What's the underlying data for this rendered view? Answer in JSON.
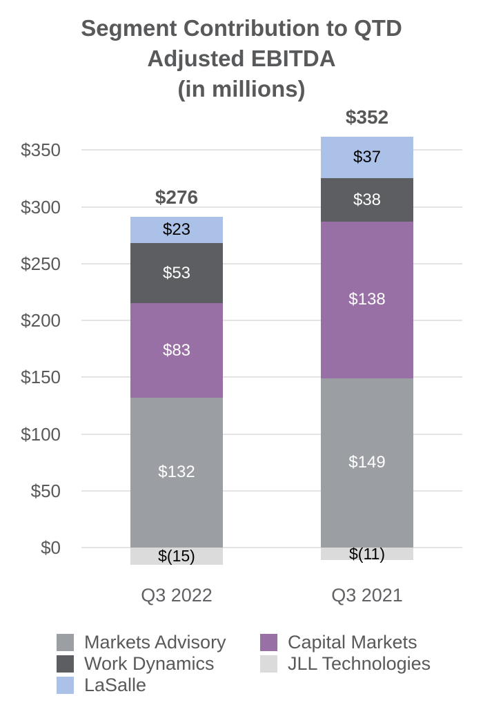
{
  "title": {
    "lines": [
      "Segment Contribution to QTD",
      "Adjusted EBITDA",
      "(in millions)"
    ]
  },
  "colors": {
    "background": "#FFFFFF",
    "grid": "#E4E4E4",
    "axis_text": "#595959",
    "title_text": "#58595B"
  },
  "chart_data": {
    "type": "bar",
    "stacked": true,
    "title": "Segment Contribution to QTD Adjusted EBITDA (in millions)",
    "categories": [
      "Q3 2022",
      "Q3 2021"
    ],
    "series": [
      {
        "name": "Markets Advisory",
        "color": "#9B9EA3",
        "label_color": "#FFFFFF",
        "values": [
          132,
          149
        ],
        "labels": [
          "$132",
          "$149"
        ]
      },
      {
        "name": "Capital Markets",
        "color": "#9970A5",
        "label_color": "#FFFFFF",
        "values": [
          83,
          138
        ],
        "labels": [
          "$83",
          "$138"
        ]
      },
      {
        "name": "Work Dynamics",
        "color": "#5C5E62",
        "label_color": "#FFFFFF",
        "values": [
          53,
          38
        ],
        "labels": [
          "$53",
          "$38"
        ]
      },
      {
        "name": "LaSalle",
        "color": "#ACC1E7",
        "label_color": "#000000",
        "values": [
          23,
          37
        ],
        "labels": [
          "$23",
          "$37"
        ]
      },
      {
        "name": "JLL Technologies",
        "color": "#DBDBDB",
        "label_color": "#000000",
        "values": [
          -15,
          -11
        ],
        "labels": [
          "$(15)",
          "$(11)"
        ]
      }
    ],
    "totals": {
      "values": [
        276,
        352
      ],
      "labels": [
        "$276",
        "$352"
      ]
    },
    "y_axis": {
      "tick_labels": [
        "$350",
        "$300",
        "$250",
        "$200",
        "$150",
        "$100",
        "$50",
        "$0"
      ],
      "tick_values": [
        350,
        300,
        250,
        200,
        150,
        100,
        50,
        0
      ],
      "ylim": [
        -26,
        380
      ]
    },
    "xlabel": "",
    "ylabel": "",
    "grid": true,
    "legend_position": "bottom"
  },
  "legend": {
    "columns": [
      {
        "items": [
          "Markets Advisory",
          "Work Dynamics",
          "LaSalle"
        ]
      },
      {
        "items": [
          "Capital Markets",
          "JLL Technologies"
        ]
      }
    ]
  }
}
